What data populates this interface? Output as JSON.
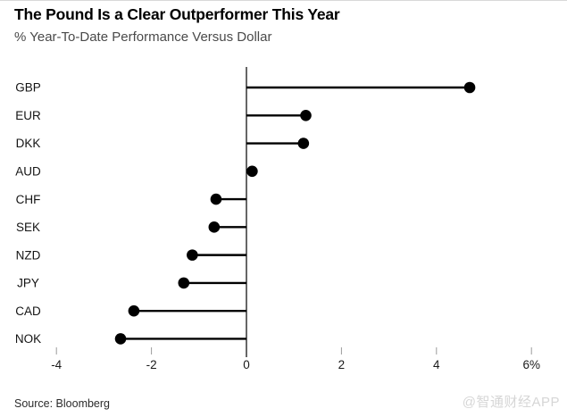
{
  "header": {
    "title": "The Pound Is a Clear Outperformer This Year",
    "subtitle": "% Year-To-Date Performance Versus Dollar"
  },
  "footer": {
    "source": "Source: Bloomberg",
    "watermark": "@智通财经APP"
  },
  "chart_data": {
    "type": "bar",
    "style": "lollipop",
    "orientation": "horizontal",
    "title": "The Pound Is a Clear Outperformer This Year",
    "xlabel": "% Year-To-Date Performance Versus Dollar",
    "categories": [
      "GBP",
      "EUR",
      "DKK",
      "AUD",
      "CHF",
      "SEK",
      "NZD",
      "JPY",
      "CAD",
      "NOK"
    ],
    "values": [
      4.7,
      1.25,
      1.2,
      0.12,
      -0.64,
      -0.68,
      -1.14,
      -1.32,
      -2.37,
      -2.65
    ],
    "x_ticks": [
      -4,
      -2,
      0,
      2,
      4,
      6
    ],
    "x_tick_labels": [
      "-4",
      "-2",
      "0",
      "2",
      "4",
      "6%"
    ],
    "xlim": [
      -4.3,
      6.7
    ],
    "grid": false,
    "legend": "none",
    "colors": {
      "dot": "#000000",
      "stem": "#000000",
      "axis_line": "#000000",
      "tick_mark": "#9b9b9b",
      "tick_label": "#1a1a1a",
      "category_label": "#141414"
    }
  }
}
